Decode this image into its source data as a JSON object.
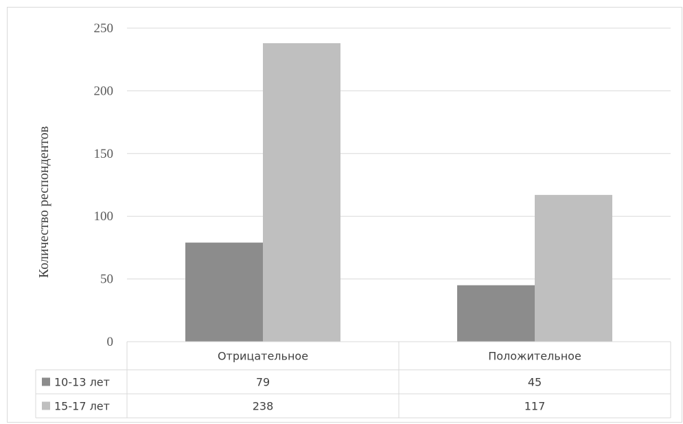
{
  "chart_data": {
    "type": "bar",
    "title": "",
    "xlabel": "",
    "ylabel": "Количество респондентов",
    "categories": [
      "Отрицательное",
      "Положительное"
    ],
    "series": [
      {
        "name": "10-13 лет",
        "values": [
          79,
          45
        ],
        "color": "#8c8c8c"
      },
      {
        "name": "15-17 лет",
        "values": [
          238,
          117
        ],
        "color": "#bfbfbf"
      }
    ],
    "ylim": [
      0,
      250
    ],
    "yticks": [
      0,
      50,
      100,
      150,
      200,
      250
    ],
    "grid": true,
    "data_table": true
  }
}
